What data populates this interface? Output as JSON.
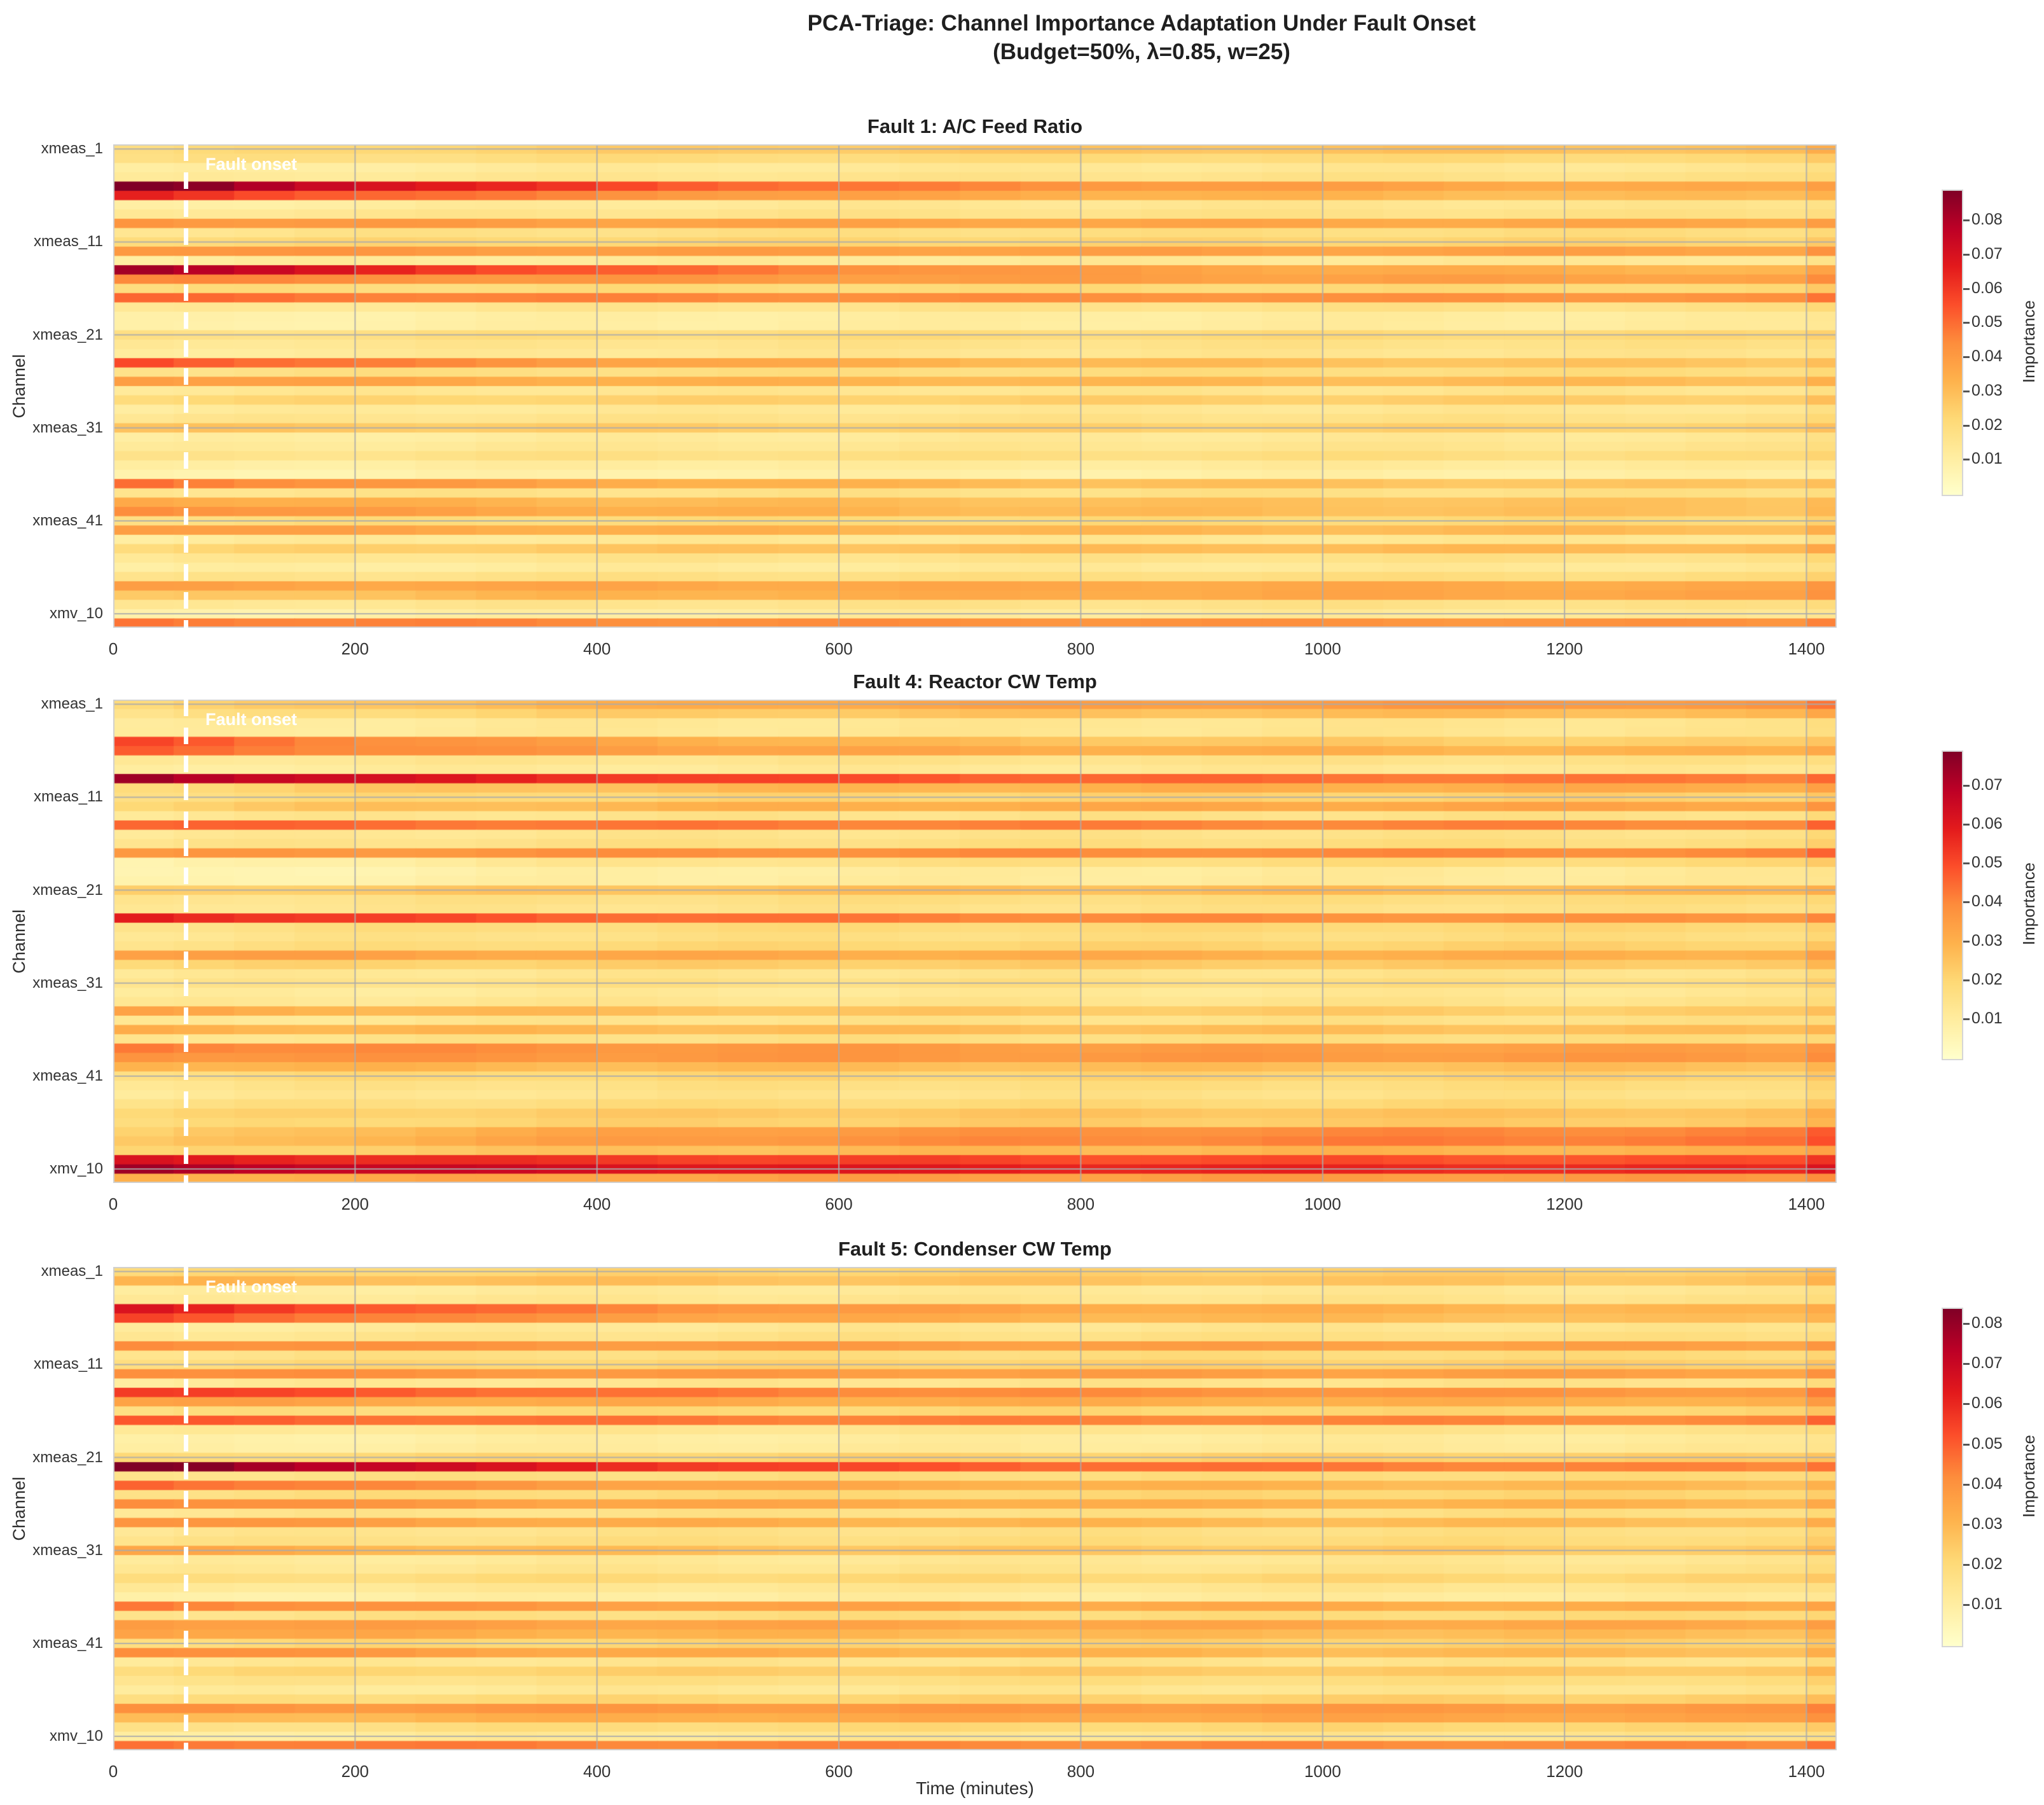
{
  "figure": {
    "title_line1": "PCA-Triage: Channel Importance Adaptation Under Fault Onset",
    "title_line2": "(Budget=50%, λ=0.85, w=25)",
    "xlabel": "Time (minutes)",
    "ylabel": "Channel",
    "onset_label": "Fault onset",
    "colorbar_label": "Importance",
    "accent_colors": {
      "heat_low": "#FFFFCC",
      "heat_high": "#800026",
      "grid": "#ababab",
      "onset_line": "#ffffff"
    }
  },
  "chart_data": {
    "type": "heatmap",
    "x": {
      "label": "Time (minutes)",
      "min": 0,
      "max": 1425,
      "block_minutes": 50,
      "fault_onset_minute": 60,
      "ticks": [
        0,
        200,
        400,
        600,
        800,
        1000,
        1200,
        1400
      ]
    },
    "y_ticks": [
      "xmeas_1",
      "xmeas_11",
      "xmeas_21",
      "xmeas_31",
      "xmeas_41",
      "xmv_10"
    ],
    "y_tick_rows": [
      0,
      10,
      20,
      30,
      40,
      50
    ],
    "channels": [
      "xmeas_1",
      "xmeas_2",
      "xmeas_3",
      "xmeas_4",
      "xmeas_5",
      "xmeas_6",
      "xmeas_7",
      "xmeas_8",
      "xmeas_9",
      "xmeas_10",
      "xmeas_11",
      "xmeas_12",
      "xmeas_13",
      "xmeas_14",
      "xmeas_15",
      "xmeas_16",
      "xmeas_17",
      "xmeas_18",
      "xmeas_19",
      "xmeas_20",
      "xmeas_21",
      "xmeas_22",
      "xmeas_23",
      "xmeas_24",
      "xmeas_25",
      "xmeas_26",
      "xmeas_27",
      "xmeas_28",
      "xmeas_29",
      "xmeas_30",
      "xmeas_31",
      "xmeas_32",
      "xmeas_33",
      "xmeas_34",
      "xmeas_35",
      "xmeas_36",
      "xmeas_37",
      "xmeas_38",
      "xmeas_39",
      "xmeas_40",
      "xmeas_41",
      "xmv_1",
      "xmv_2",
      "xmv_3",
      "xmv_4",
      "xmv_5",
      "xmv_6",
      "xmv_7",
      "xmv_8",
      "xmv_9",
      "xmv_10",
      "xmv_11"
    ],
    "colormap": {
      "name": "YlOrRd",
      "stops": [
        "#FFFFCC",
        "#FFEDA0",
        "#FED976",
        "#FEB24C",
        "#FD8D3C",
        "#FC4E2A",
        "#E31A1C",
        "#BD0026",
        "#800026"
      ]
    },
    "decay_tau_minutes": 450,
    "layout": {
      "grid": true,
      "grid_color": "#ababab",
      "background": "#ffffff",
      "colorbar_position": "right",
      "onset_line_style": "dashed-white"
    },
    "subplots": [
      {
        "title": "Fault 1: A/C Feed Ratio",
        "color_scale_max": 0.089,
        "colorbar_ticks": [
          0.01,
          0.02,
          0.03,
          0.04,
          0.05,
          0.06,
          0.07,
          0.08
        ],
        "importance_early": [
          0.02,
          0.018,
          0.01,
          0.012,
          0.088,
          0.062,
          0.01,
          0.014,
          0.042,
          0.016,
          0.022,
          0.042,
          0.012,
          0.08,
          0.045,
          0.02,
          0.05,
          0.013,
          0.008,
          0.008,
          0.018,
          0.014,
          0.012,
          0.055,
          0.018,
          0.04,
          0.014,
          0.022,
          0.012,
          0.015,
          0.028,
          0.01,
          0.012,
          0.016,
          0.01,
          0.007,
          0.048,
          0.016,
          0.036,
          0.044,
          0.02,
          0.04,
          0.012,
          0.022,
          0.014,
          0.01,
          0.016,
          0.038,
          0.026,
          0.014,
          0.008,
          0.048
        ],
        "importance_late": [
          0.03,
          0.022,
          0.015,
          0.018,
          0.032,
          0.028,
          0.016,
          0.018,
          0.036,
          0.02,
          0.024,
          0.038,
          0.014,
          0.03,
          0.038,
          0.022,
          0.042,
          0.018,
          0.012,
          0.012,
          0.022,
          0.018,
          0.016,
          0.026,
          0.02,
          0.03,
          0.016,
          0.026,
          0.015,
          0.018,
          0.024,
          0.014,
          0.016,
          0.02,
          0.013,
          0.01,
          0.026,
          0.018,
          0.028,
          0.028,
          0.022,
          0.03,
          0.015,
          0.032,
          0.018,
          0.014,
          0.02,
          0.036,
          0.038,
          0.018,
          0.014,
          0.042
        ]
      },
      {
        "title": "Fault 4: Reactor CW Temp",
        "color_scale_max": 0.079,
        "colorbar_ticks": [
          0.01,
          0.02,
          0.03,
          0.04,
          0.05,
          0.06,
          0.07
        ],
        "importance_early": [
          0.02,
          0.015,
          0.01,
          0.01,
          0.048,
          0.045,
          0.012,
          0.01,
          0.072,
          0.02,
          0.018,
          0.022,
          0.013,
          0.046,
          0.012,
          0.014,
          0.036,
          0.006,
          0.005,
          0.006,
          0.022,
          0.014,
          0.013,
          0.058,
          0.016,
          0.014,
          0.016,
          0.035,
          0.02,
          0.012,
          0.014,
          0.01,
          0.012,
          0.032,
          0.012,
          0.03,
          0.014,
          0.042,
          0.038,
          0.03,
          0.018,
          0.014,
          0.012,
          0.016,
          0.02,
          0.018,
          0.022,
          0.024,
          0.02,
          0.06,
          0.072,
          0.03
        ],
        "importance_late": [
          0.038,
          0.028,
          0.014,
          0.014,
          0.02,
          0.028,
          0.016,
          0.013,
          0.04,
          0.032,
          0.022,
          0.034,
          0.016,
          0.04,
          0.016,
          0.018,
          0.04,
          0.02,
          0.012,
          0.012,
          0.028,
          0.018,
          0.016,
          0.036,
          0.02,
          0.018,
          0.022,
          0.03,
          0.024,
          0.015,
          0.018,
          0.013,
          0.015,
          0.022,
          0.016,
          0.026,
          0.018,
          0.034,
          0.036,
          0.026,
          0.022,
          0.018,
          0.016,
          0.02,
          0.026,
          0.024,
          0.042,
          0.044,
          0.03,
          0.048,
          0.055,
          0.036
        ]
      },
      {
        "title": "Fault 5: Condenser CW Temp",
        "color_scale_max": 0.084,
        "colorbar_ticks": [
          0.01,
          0.02,
          0.03,
          0.04,
          0.05,
          0.06,
          0.07,
          0.08
        ],
        "importance_early": [
          0.02,
          0.03,
          0.01,
          0.012,
          0.062,
          0.052,
          0.011,
          0.014,
          0.042,
          0.016,
          0.02,
          0.042,
          0.012,
          0.056,
          0.036,
          0.018,
          0.05,
          0.012,
          0.008,
          0.009,
          0.02,
          0.085,
          0.016,
          0.048,
          0.018,
          0.042,
          0.014,
          0.04,
          0.014,
          0.016,
          0.034,
          0.011,
          0.013,
          0.018,
          0.012,
          0.008,
          0.044,
          0.016,
          0.038,
          0.036,
          0.02,
          0.042,
          0.013,
          0.02,
          0.015,
          0.011,
          0.018,
          0.04,
          0.028,
          0.016,
          0.01,
          0.046
        ],
        "importance_late": [
          0.024,
          0.026,
          0.014,
          0.016,
          0.028,
          0.026,
          0.015,
          0.018,
          0.036,
          0.02,
          0.024,
          0.036,
          0.016,
          0.038,
          0.032,
          0.022,
          0.042,
          0.016,
          0.012,
          0.013,
          0.024,
          0.04,
          0.02,
          0.028,
          0.022,
          0.03,
          0.018,
          0.028,
          0.018,
          0.02,
          0.024,
          0.014,
          0.016,
          0.022,
          0.015,
          0.012,
          0.032,
          0.02,
          0.034,
          0.028,
          0.024,
          0.028,
          0.016,
          0.026,
          0.019,
          0.015,
          0.024,
          0.038,
          0.036,
          0.022,
          0.016,
          0.042
        ]
      }
    ]
  }
}
